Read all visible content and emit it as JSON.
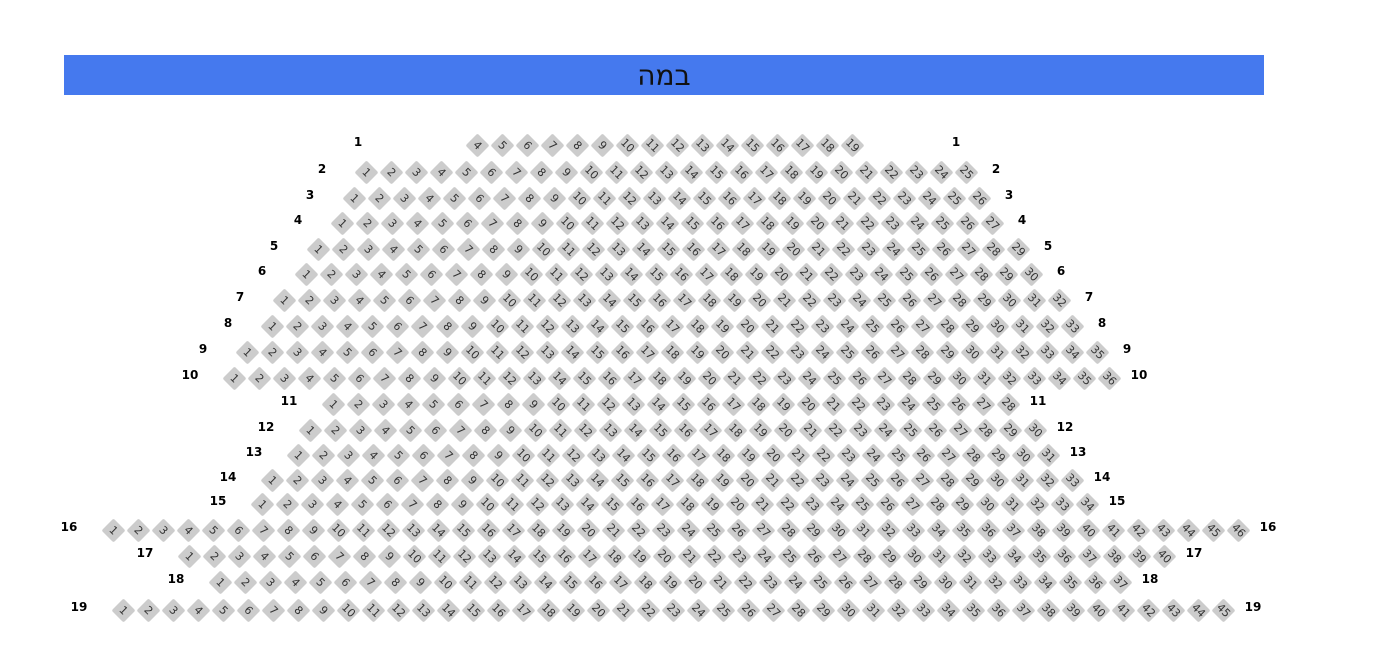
{
  "stage": {
    "label": "במה",
    "color": "#4579ee"
  },
  "seat_color": "#cccccc",
  "rows": [
    {
      "label": "1",
      "from": 4,
      "to": 19
    },
    {
      "label": "2",
      "from": 1,
      "to": 25
    },
    {
      "label": "3",
      "from": 1,
      "to": 26
    },
    {
      "label": "4",
      "from": 1,
      "to": 27
    },
    {
      "label": "5",
      "from": 1,
      "to": 29
    },
    {
      "label": "6",
      "from": 1,
      "to": 30
    },
    {
      "label": "7",
      "from": 1,
      "to": 32
    },
    {
      "label": "8",
      "from": 1,
      "to": 33
    },
    {
      "label": "9",
      "from": 1,
      "to": 35
    },
    {
      "label": "10",
      "from": 1,
      "to": 36
    },
    {
      "label": "11",
      "from": 1,
      "to": 28
    },
    {
      "label": "12",
      "from": 1,
      "to": 30
    },
    {
      "label": "13",
      "from": 1,
      "to": 31
    },
    {
      "label": "14",
      "from": 1,
      "to": 33
    },
    {
      "label": "15",
      "from": 1,
      "to": 34
    },
    {
      "label": "16",
      "from": 1,
      "to": 46
    },
    {
      "label": "17",
      "from": 1,
      "to": 40
    },
    {
      "label": "18",
      "from": 1,
      "to": 37
    },
    {
      "label": "19",
      "from": 1,
      "to": 45
    }
  ]
}
